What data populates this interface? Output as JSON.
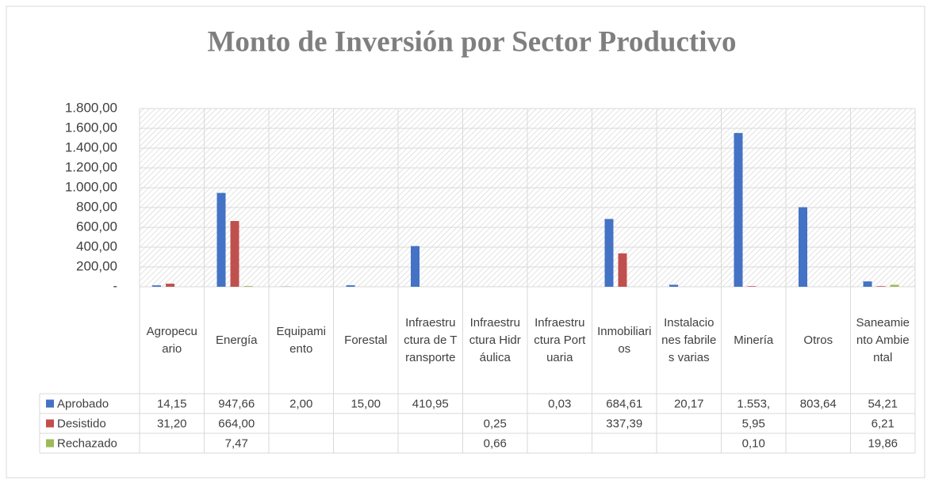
{
  "chart_data": {
    "type": "bar",
    "title": "Monto de Inversión por Sector Productivo",
    "categories": [
      "Agropecuario",
      "Energía",
      "Equipamiento",
      "Forestal",
      "Infraestructura de Transporte",
      "Infraestructura Hidráulica",
      "Infraestructura Portuaria",
      "Inmobiliarios",
      "Instalaciones fabriles varias",
      "Minería",
      "Otros",
      "Saneamiento Ambiental"
    ],
    "series": [
      {
        "name": "Aprobado",
        "color": "#4472c4",
        "values": [
          14.15,
          947.66,
          2.0,
          15.0,
          410.95,
          null,
          0.03,
          684.61,
          20.17,
          1553,
          803.64,
          54.21
        ],
        "value_labels": [
          "14,15",
          "947,66",
          "2,00",
          "15,00",
          "410,95",
          null,
          "0,03",
          "684,61",
          "20,17",
          "1.553,",
          "803,64",
          "54,21"
        ]
      },
      {
        "name": "Desistido",
        "color": "#c0504d",
        "values": [
          31.2,
          664.0,
          null,
          null,
          null,
          0.25,
          null,
          337.39,
          null,
          5.95,
          null,
          6.21
        ],
        "value_labels": [
          "31,20",
          "664,00",
          null,
          null,
          null,
          "0,25",
          null,
          "337,39",
          null,
          "5,95",
          null,
          "6,21"
        ]
      },
      {
        "name": "Rechazado",
        "color": "#9bbb59",
        "values": [
          null,
          7.47,
          null,
          null,
          null,
          0.66,
          null,
          null,
          null,
          0.1,
          null,
          19.86
        ],
        "value_labels": [
          null,
          "7,47",
          null,
          null,
          null,
          "0,66",
          null,
          null,
          null,
          "0,10",
          null,
          "19,86"
        ]
      }
    ],
    "ylim": [
      0,
      1800
    ],
    "yticks": [
      {
        "value": 0,
        "label": "-"
      },
      {
        "value": 200,
        "label": "200,00"
      },
      {
        "value": 400,
        "label": "400,00"
      },
      {
        "value": 600,
        "label": "600,00"
      },
      {
        "value": 800,
        "label": "800,00"
      },
      {
        "value": 1000,
        "label": "1.000,00"
      },
      {
        "value": 1200,
        "label": "1.200,00"
      },
      {
        "value": 1400,
        "label": "1.400,00"
      },
      {
        "value": 1600,
        "label": "1.600,00"
      },
      {
        "value": 1800,
        "label": "1.800,00"
      }
    ],
    "grid": true
  }
}
